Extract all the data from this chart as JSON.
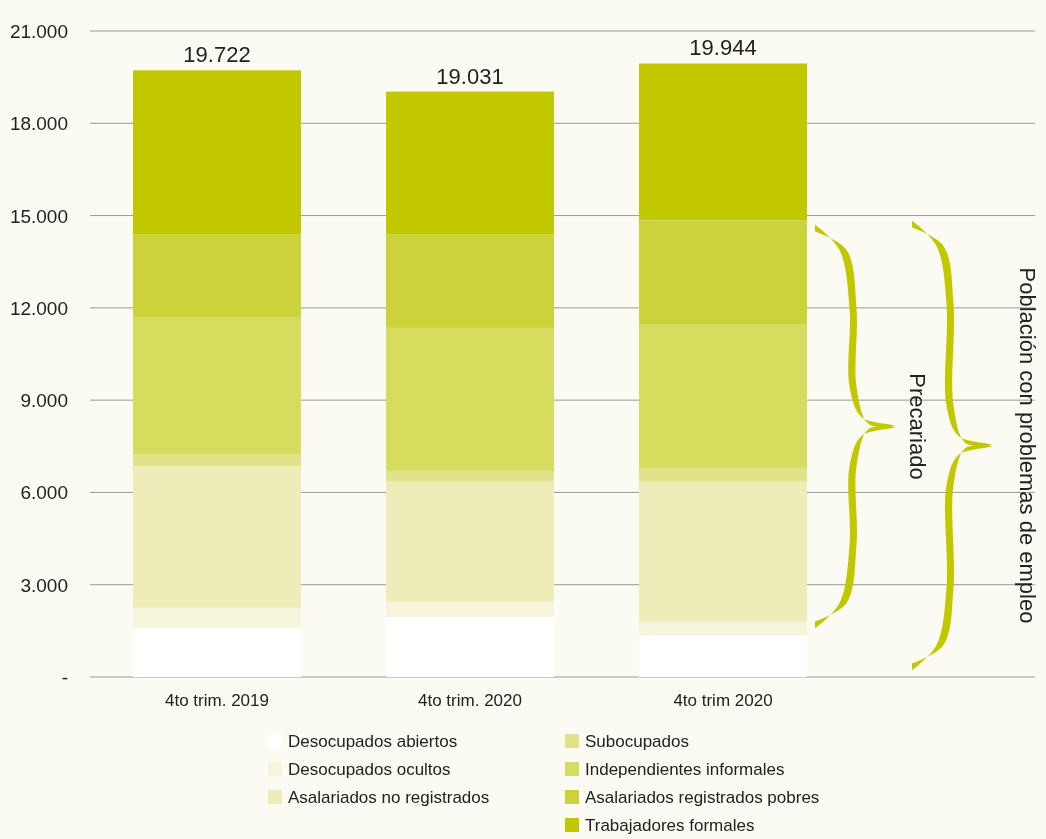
{
  "chart_data": {
    "type": "bar",
    "stacked": true,
    "categories": [
      "4to trim. 2019",
      "4to trim. 2020",
      "4to trim 2020"
    ],
    "series": [
      {
        "name": "Desocupados abiertos",
        "color": "#ffffff",
        "values": [
          1600,
          1950,
          1350
        ]
      },
      {
        "name": "Desocupados ocultos",
        "color": "#f6f5dc",
        "values": [
          650,
          500,
          450
        ]
      },
      {
        "name": "Asalariados no registrados",
        "color": "#eeedb9",
        "values": [
          4600,
          3900,
          4550
        ]
      },
      {
        "name": "Subocupados",
        "color": "#e0e38a",
        "values": [
          400,
          350,
          450
        ]
      },
      {
        "name": "Independientes informales",
        "color": "#d6dc5e",
        "values": [
          4450,
          4650,
          4650
        ]
      },
      {
        "name": "Asalariados registrados pobres",
        "color": "#cbd23a",
        "values": [
          2700,
          3050,
          3400
        ]
      },
      {
        "name": "Trabajadores formales",
        "color": "#c2c800",
        "values": [
          5322,
          4631,
          5094
        ]
      }
    ],
    "totals": [
      "19.722",
      "19.031",
      "19.944"
    ],
    "ylim": [
      0,
      21000
    ],
    "yticks": [
      {
        "value": 0,
        "label": "-"
      },
      {
        "value": 3000,
        "label": "3.000"
      },
      {
        "value": 6000,
        "label": "6.000"
      },
      {
        "value": 9000,
        "label": "9.000"
      },
      {
        "value": 12000,
        "label": "12.000"
      },
      {
        "value": 15000,
        "label": "15.000"
      },
      {
        "value": 18000,
        "label": "18.000"
      },
      {
        "value": 21000,
        "label": "21.000"
      }
    ],
    "grid": "y",
    "legend": "bottom",
    "annotations": [
      "Precariado",
      "Población con problemas de empleo"
    ]
  }
}
